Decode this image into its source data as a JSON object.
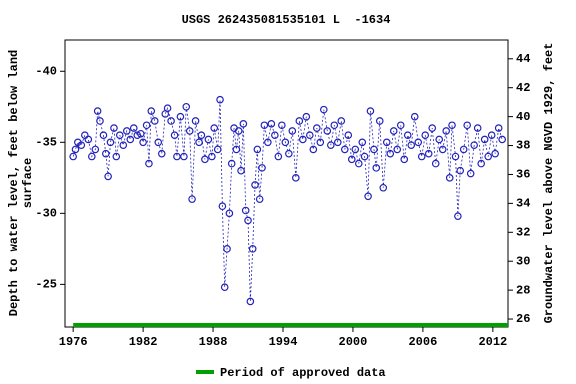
{
  "chart_data": {
    "type": "scatter",
    "title": "USGS 262435081535101 L  -1634",
    "y_label": [
      "Depth to water level, feet below land",
      "surface"
    ],
    "y2_label": "Groundwater level above NGVD 1929, feet",
    "color": "#2222bb",
    "x": [
      1976.0,
      1976.2,
      1976.4,
      1976.7,
      1977.0,
      1977.3,
      1977.6,
      1977.9,
      1978.1,
      1978.3,
      1978.6,
      1978.8,
      1979.0,
      1979.2,
      1979.5,
      1979.7,
      1980.0,
      1980.3,
      1980.6,
      1980.9,
      1981.2,
      1981.5,
      1981.8,
      1982.0,
      1982.3,
      1982.5,
      1982.7,
      1983.0,
      1983.3,
      1983.6,
      1983.9,
      1984.1,
      1984.4,
      1984.7,
      1984.9,
      1985.2,
      1985.5,
      1985.7,
      1986.0,
      1986.2,
      1986.5,
      1986.8,
      1987.0,
      1987.3,
      1987.6,
      1987.9,
      1988.1,
      1988.4,
      1988.6,
      1988.8,
      1989.0,
      1989.2,
      1989.4,
      1989.6,
      1989.8,
      1990.0,
      1990.2,
      1990.4,
      1990.6,
      1990.8,
      1991.0,
      1991.2,
      1991.4,
      1991.6,
      1991.8,
      1992.0,
      1992.2,
      1992.4,
      1992.7,
      1993.0,
      1993.3,
      1993.6,
      1993.9,
      1994.2,
      1994.5,
      1994.8,
      1995.1,
      1995.4,
      1995.7,
      1996.0,
      1996.3,
      1996.6,
      1996.9,
      1997.2,
      1997.5,
      1997.8,
      1998.1,
      1998.4,
      1998.7,
      1999.0,
      1999.3,
      1999.6,
      1999.9,
      2000.2,
      2000.5,
      2000.8,
      2001.0,
      2001.3,
      2001.5,
      2001.8,
      2002.0,
      2002.3,
      2002.6,
      2002.9,
      2003.2,
      2003.5,
      2003.8,
      2004.1,
      2004.4,
      2004.7,
      2005.0,
      2005.3,
      2005.6,
      2005.9,
      2006.2,
      2006.5,
      2006.8,
      2007.1,
      2007.4,
      2007.7,
      2008.0,
      2008.3,
      2008.5,
      2008.8,
      2009.0,
      2009.2,
      2009.5,
      2009.8,
      2010.1,
      2010.4,
      2010.7,
      2011.0,
      2011.3,
      2011.6,
      2011.9,
      2012.2,
      2012.5,
      2012.8
    ],
    "values": [
      -34.0,
      -34.5,
      -35.0,
      -34.8,
      -35.5,
      -35.2,
      -34.0,
      -34.5,
      -37.2,
      -36.5,
      -35.5,
      -34.2,
      -32.6,
      -35.0,
      -36.0,
      -34.0,
      -35.5,
      -34.8,
      -35.8,
      -35.2,
      -36.0,
      -35.5,
      -35.6,
      -35.0,
      -36.2,
      -33.5,
      -37.2,
      -36.5,
      -35.0,
      -34.2,
      -37.0,
      -37.4,
      -36.5,
      -35.5,
      -34.0,
      -36.8,
      -34.0,
      -37.5,
      -35.8,
      -31.0,
      -36.5,
      -35.0,
      -35.5,
      -33.8,
      -35.2,
      -34.0,
      -36.0,
      -34.5,
      -38.0,
      -30.5,
      -24.8,
      -27.5,
      -30.0,
      -33.5,
      -36.0,
      -34.5,
      -35.8,
      -33.0,
      -36.3,
      -30.2,
      -29.5,
      -23.8,
      -27.5,
      -32.0,
      -34.5,
      -31.0,
      -33.2,
      -36.2,
      -35.0,
      -36.3,
      -35.5,
      -34.0,
      -36.2,
      -35.0,
      -34.2,
      -35.8,
      -32.5,
      -36.5,
      -35.2,
      -36.8,
      -35.5,
      -34.5,
      -36.0,
      -35.0,
      -37.3,
      -35.8,
      -34.8,
      -36.2,
      -35.0,
      -36.5,
      -34.5,
      -35.5,
      -33.8,
      -34.5,
      -33.5,
      -35.0,
      -34.0,
      -31.2,
      -37.2,
      -34.5,
      -33.2,
      -36.5,
      -31.8,
      -35.0,
      -34.2,
      -35.8,
      -34.5,
      -36.2,
      -33.8,
      -35.5,
      -34.8,
      -36.8,
      -35.0,
      -34.0,
      -35.5,
      -34.2,
      -36.0,
      -33.5,
      -35.2,
      -34.5,
      -35.8,
      -32.5,
      -36.2,
      -34.0,
      -29.8,
      -33.0,
      -34.5,
      -36.2,
      -32.8,
      -34.8,
      -36.0,
      -33.5,
      -35.2,
      -34.0,
      -35.5,
      -34.2,
      -36.0,
      -35.2
    ],
    "xlim": [
      1975.3,
      2013.3
    ],
    "xticks": [
      1976,
      1982,
      1988,
      1994,
      2000,
      2006,
      2012
    ],
    "ylim": [
      -42.2,
      -22
    ],
    "y_inverted": true,
    "yticks": [
      -40,
      -35,
      -30,
      -25
    ],
    "y2lim": [
      25.45,
      45.3
    ],
    "y2ticks": [
      26,
      28,
      30,
      32,
      34,
      36,
      38,
      40,
      42,
      44
    ],
    "approved": {
      "name": "Period of approved data",
      "color": "#00a000",
      "x": [
        1976,
        2013.3
      ]
    }
  }
}
